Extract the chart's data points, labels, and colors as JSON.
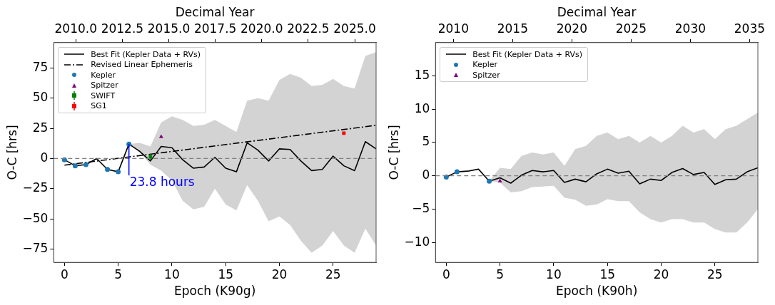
{
  "chart_data": [
    {
      "type": "line",
      "xlabel": "Epoch (K90g)",
      "ylabel": "O-C [hrs]",
      "x2label": "Decimal Year",
      "xlim": [
        -1,
        29
      ],
      "xticks": [
        0,
        5,
        10,
        15,
        20,
        25
      ],
      "x2lim": [
        2008.81,
        2026.15
      ],
      "x2ticks": [
        {
          "value": 2010,
          "label": "2010.0"
        },
        {
          "value": 2012.5,
          "label": "2012.5"
        },
        {
          "value": 2015,
          "label": "2015.0"
        },
        {
          "value": 2017.5,
          "label": "2017.5"
        },
        {
          "value": 2020,
          "label": "2020.0"
        },
        {
          "value": 2022.5,
          "label": "2022.5"
        },
        {
          "value": 2025,
          "label": "2025.0"
        }
      ],
      "ylim": [
        -86,
        96
      ],
      "yticks": [
        -75,
        -50,
        -25,
        0,
        25,
        50,
        75
      ],
      "grid": false,
      "legend": "top left",
      "ref_lines": [
        {
          "axis": "y",
          "value": 0,
          "color": "#808080",
          "line_style": "dashed"
        }
      ],
      "annotations": [
        {
          "text": "23.8 hours",
          "x": 6,
          "y": 12
        }
      ],
      "series": [
        {
          "name": "Best Fit (Kepler Data + RVs)",
          "type": "line",
          "color": "#000000",
          "marker": "none",
          "x": [
            0,
            1,
            2,
            3,
            4,
            5,
            6,
            7,
            8,
            9,
            10,
            11,
            12,
            13,
            14,
            15,
            16,
            17,
            18,
            19,
            20,
            21,
            22,
            23,
            24,
            25,
            26,
            27,
            28,
            29
          ],
          "values": [
            -1,
            -6,
            -5,
            0,
            -9,
            -11,
            12,
            6,
            -2,
            10,
            9,
            -1,
            -8,
            -7,
            1,
            -8,
            -11,
            13,
            7,
            -2,
            8,
            7.5,
            -2,
            -10,
            -9,
            2,
            -6,
            -10,
            14,
            8
          ],
          "lower": [
            null,
            null,
            null,
            null,
            null,
            null,
            12,
            5,
            -5,
            -10,
            -18,
            -35,
            -42,
            -40,
            -25,
            -38,
            -43,
            -22,
            -35,
            -52,
            -48,
            -55,
            -68,
            -78,
            -72,
            -60,
            -72,
            -78,
            -58,
            -72
          ],
          "upper": [
            null,
            null,
            null,
            null,
            null,
            null,
            12,
            13,
            10,
            30,
            35,
            32,
            27,
            28,
            32,
            27,
            22,
            48,
            50,
            48,
            65,
            70,
            67,
            60,
            61,
            66,
            60,
            58,
            85,
            88
          ]
        },
        {
          "name": "Revised Linear Ephemeris",
          "type": "line",
          "color": "#000000",
          "marker": "none",
          "line_style": "dashdot",
          "x": [
            0,
            29
          ],
          "values": [
            -5.5,
            27.5
          ]
        },
        {
          "name": "Kepler",
          "type": "scatter",
          "color": "#1f77b4",
          "marker": "circle",
          "x": [
            0,
            1,
            2,
            4,
            5,
            6
          ],
          "values": [
            -1,
            -6,
            -5,
            -9,
            -11,
            12
          ]
        },
        {
          "name": "Spitzer",
          "type": "scatter",
          "color": "#800080",
          "marker": "triangle",
          "x": [
            9
          ],
          "values": [
            18
          ]
        },
        {
          "name": "SWIFT",
          "type": "scatter",
          "color": "#008000",
          "marker": "square",
          "x": [
            8
          ],
          "values": [
            1.5
          ],
          "errors": [
            2.5
          ]
        },
        {
          "name": "SG1",
          "type": "scatter",
          "color": "#ff0000",
          "marker": "square",
          "x": [
            26
          ],
          "values": [
            21
          ],
          "errors": [
            1
          ]
        }
      ]
    },
    {
      "type": "line",
      "xlabel": "Epoch (K90h)",
      "ylabel": "O-C [hrs]",
      "x2label": "Decimal Year",
      "xlim": [
        -1,
        29
      ],
      "xticks": [
        0,
        5,
        10,
        15,
        20,
        25
      ],
      "x2lim": [
        2008.49,
        2035.7
      ],
      "x2ticks": [
        2010,
        2015,
        2020,
        2025,
        2030,
        2035
      ],
      "ylim": [
        -13,
        20
      ],
      "yticks": [
        -10,
        -5,
        0,
        5,
        10,
        15
      ],
      "grid": false,
      "legend": "top left",
      "ref_lines": [
        {
          "axis": "y",
          "value": 0,
          "color": "#808080",
          "line_style": "dashed"
        }
      ],
      "series": [
        {
          "name": "Best Fit (Kepler Data + RVs)",
          "type": "line",
          "color": "#000000",
          "marker": "none",
          "x": [
            0,
            1,
            2,
            3,
            4,
            5,
            6,
            7,
            8,
            9,
            10,
            11,
            12,
            13,
            14,
            15,
            16,
            17,
            18,
            19,
            20,
            21,
            22,
            23,
            24,
            25,
            26,
            27,
            28,
            29
          ],
          "values": [
            -0.2,
            0.6,
            0.7,
            1.0,
            -0.8,
            -0.3,
            -1.1,
            0.1,
            0.8,
            0.6,
            0.8,
            -1.0,
            -0.5,
            -0.9,
            0.3,
            1.0,
            0.4,
            0.7,
            -1.2,
            -0.5,
            -0.7,
            0.5,
            1.1,
            0.2,
            0.5,
            -1.3,
            -0.6,
            -0.5,
            0.6,
            1.2
          ],
          "lower": [
            null,
            null,
            null,
            null,
            -0.8,
            -1.0,
            -2.5,
            -2.3,
            -1.7,
            -1.6,
            -1.5,
            -3.3,
            -3.6,
            -4.5,
            -4.3,
            -3.5,
            -3.8,
            -3.8,
            -5.5,
            -6.5,
            -7,
            -6.5,
            -6.5,
            -7,
            -7,
            -8,
            -8.5,
            -8.5,
            -7,
            -5
          ],
          "upper": [
            null,
            null,
            null,
            null,
            -0.8,
            1.2,
            1.0,
            3,
            3.5,
            3.2,
            3.5,
            1.5,
            4,
            4.5,
            6,
            6.5,
            5.5,
            6,
            5,
            6,
            5,
            6,
            7.5,
            6.5,
            7,
            5.5,
            7,
            7.5,
            8.5,
            9.5
          ]
        },
        {
          "name": "Kepler",
          "type": "scatter",
          "color": "#1f77b4",
          "marker": "circle",
          "x": [
            0,
            1,
            4
          ],
          "values": [
            -0.2,
            0.6,
            -0.8
          ]
        },
        {
          "name": "Spitzer",
          "type": "scatter",
          "color": "#800080",
          "marker": "triangle",
          "x": [
            5
          ],
          "values": [
            -0.8
          ]
        }
      ]
    }
  ]
}
